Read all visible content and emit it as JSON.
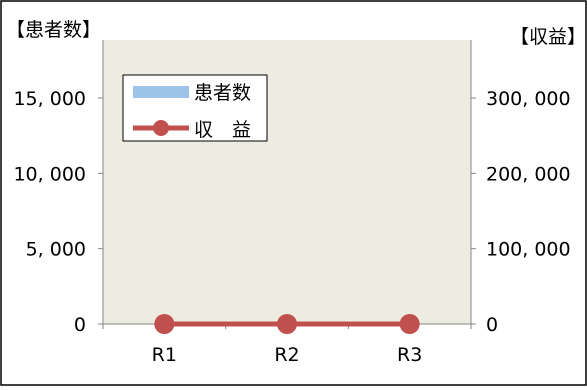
{
  "chart_data": {
    "type": "bar+line",
    "title": "",
    "left_axis_title": "【患者数】",
    "right_axis_title": "【収益】",
    "categories": [
      "R1",
      "R2",
      "R3"
    ],
    "left_ylim": [
      0,
      15000
    ],
    "left_ticks": [
      "0",
      "5, 000",
      "10, 000",
      "15, 000"
    ],
    "left_tick_values": [
      0,
      5000,
      10000,
      15000
    ],
    "right_ylim": [
      0,
      300000
    ],
    "right_ticks": [
      "0",
      "100, 000",
      "200, 000",
      "300, 000"
    ],
    "right_tick_values": [
      0,
      100000,
      200000,
      300000
    ],
    "grid": false,
    "legend_position": "top-left",
    "series": [
      {
        "name": "患者数",
        "type": "bar",
        "axis": "left",
        "values": [
          0,
          0,
          0
        ],
        "color": "#9dc3e6"
      },
      {
        "name": "収　益",
        "type": "line",
        "axis": "right",
        "values": [
          0,
          0,
          0
        ],
        "color": "#c0504d"
      }
    ],
    "plot_background": "#eeece1"
  }
}
